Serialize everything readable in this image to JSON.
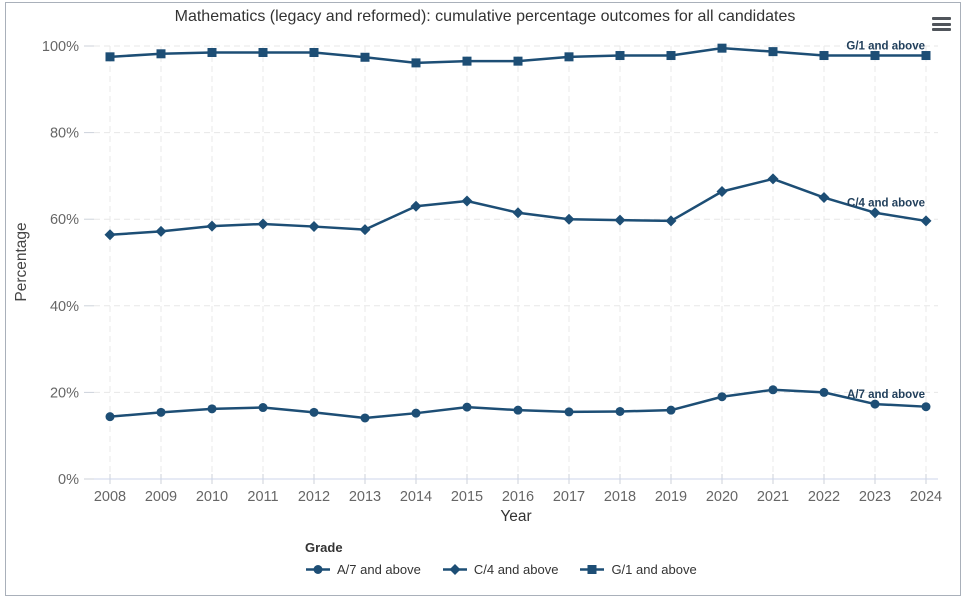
{
  "frame": {
    "border_color": "#a9b0ba"
  },
  "menu": {
    "icon": "hamburger-icon",
    "tooltip": "Chart context menu"
  },
  "chart_data": {
    "type": "line",
    "title": "Mathematics (legacy and reformed): cumulative percentage outcomes for all candidates",
    "xlabel": "Year",
    "ylabel": "Percentage",
    "legend_title": "Grade",
    "legend_position": "bottom",
    "grid": true,
    "gridline_style": "dashed",
    "ylim": [
      0,
      100
    ],
    "yticks": [
      {
        "value": 0,
        "label": "0%"
      },
      {
        "value": 20,
        "label": "20%"
      },
      {
        "value": 40,
        "label": "40%"
      },
      {
        "value": 60,
        "label": "60%"
      },
      {
        "value": 80,
        "label": "80%"
      },
      {
        "value": 100,
        "label": "100%"
      }
    ],
    "x": [
      2008,
      2009,
      2010,
      2011,
      2012,
      2013,
      2014,
      2015,
      2016,
      2017,
      2018,
      2019,
      2020,
      2021,
      2022,
      2023,
      2024
    ],
    "series": [
      {
        "name": "A/7 and above",
        "marker": "circle",
        "color": "#1d4e75",
        "values": [
          14.4,
          15.4,
          16.2,
          16.5,
          15.4,
          14.1,
          15.2,
          16.6,
          15.9,
          15.5,
          15.6,
          15.9,
          19.0,
          20.6,
          20.0,
          17.3,
          16.7
        ]
      },
      {
        "name": "C/4 and above",
        "marker": "diamond",
        "color": "#1d4e75",
        "values": [
          56.4,
          57.2,
          58.4,
          58.9,
          58.3,
          57.6,
          63.0,
          64.2,
          61.5,
          60.0,
          59.8,
          59.6,
          66.4,
          69.3,
          65.0,
          61.5,
          59.6
        ]
      },
      {
        "name": "G/1 and above",
        "marker": "square",
        "color": "#1d4e75",
        "values": [
          97.5,
          98.2,
          98.5,
          98.5,
          98.5,
          97.4,
          96.1,
          96.5,
          96.5,
          97.5,
          97.8,
          97.8,
          99.5,
          98.7,
          97.8,
          97.8,
          97.8
        ]
      }
    ],
    "series_labels_on_chart": true
  }
}
